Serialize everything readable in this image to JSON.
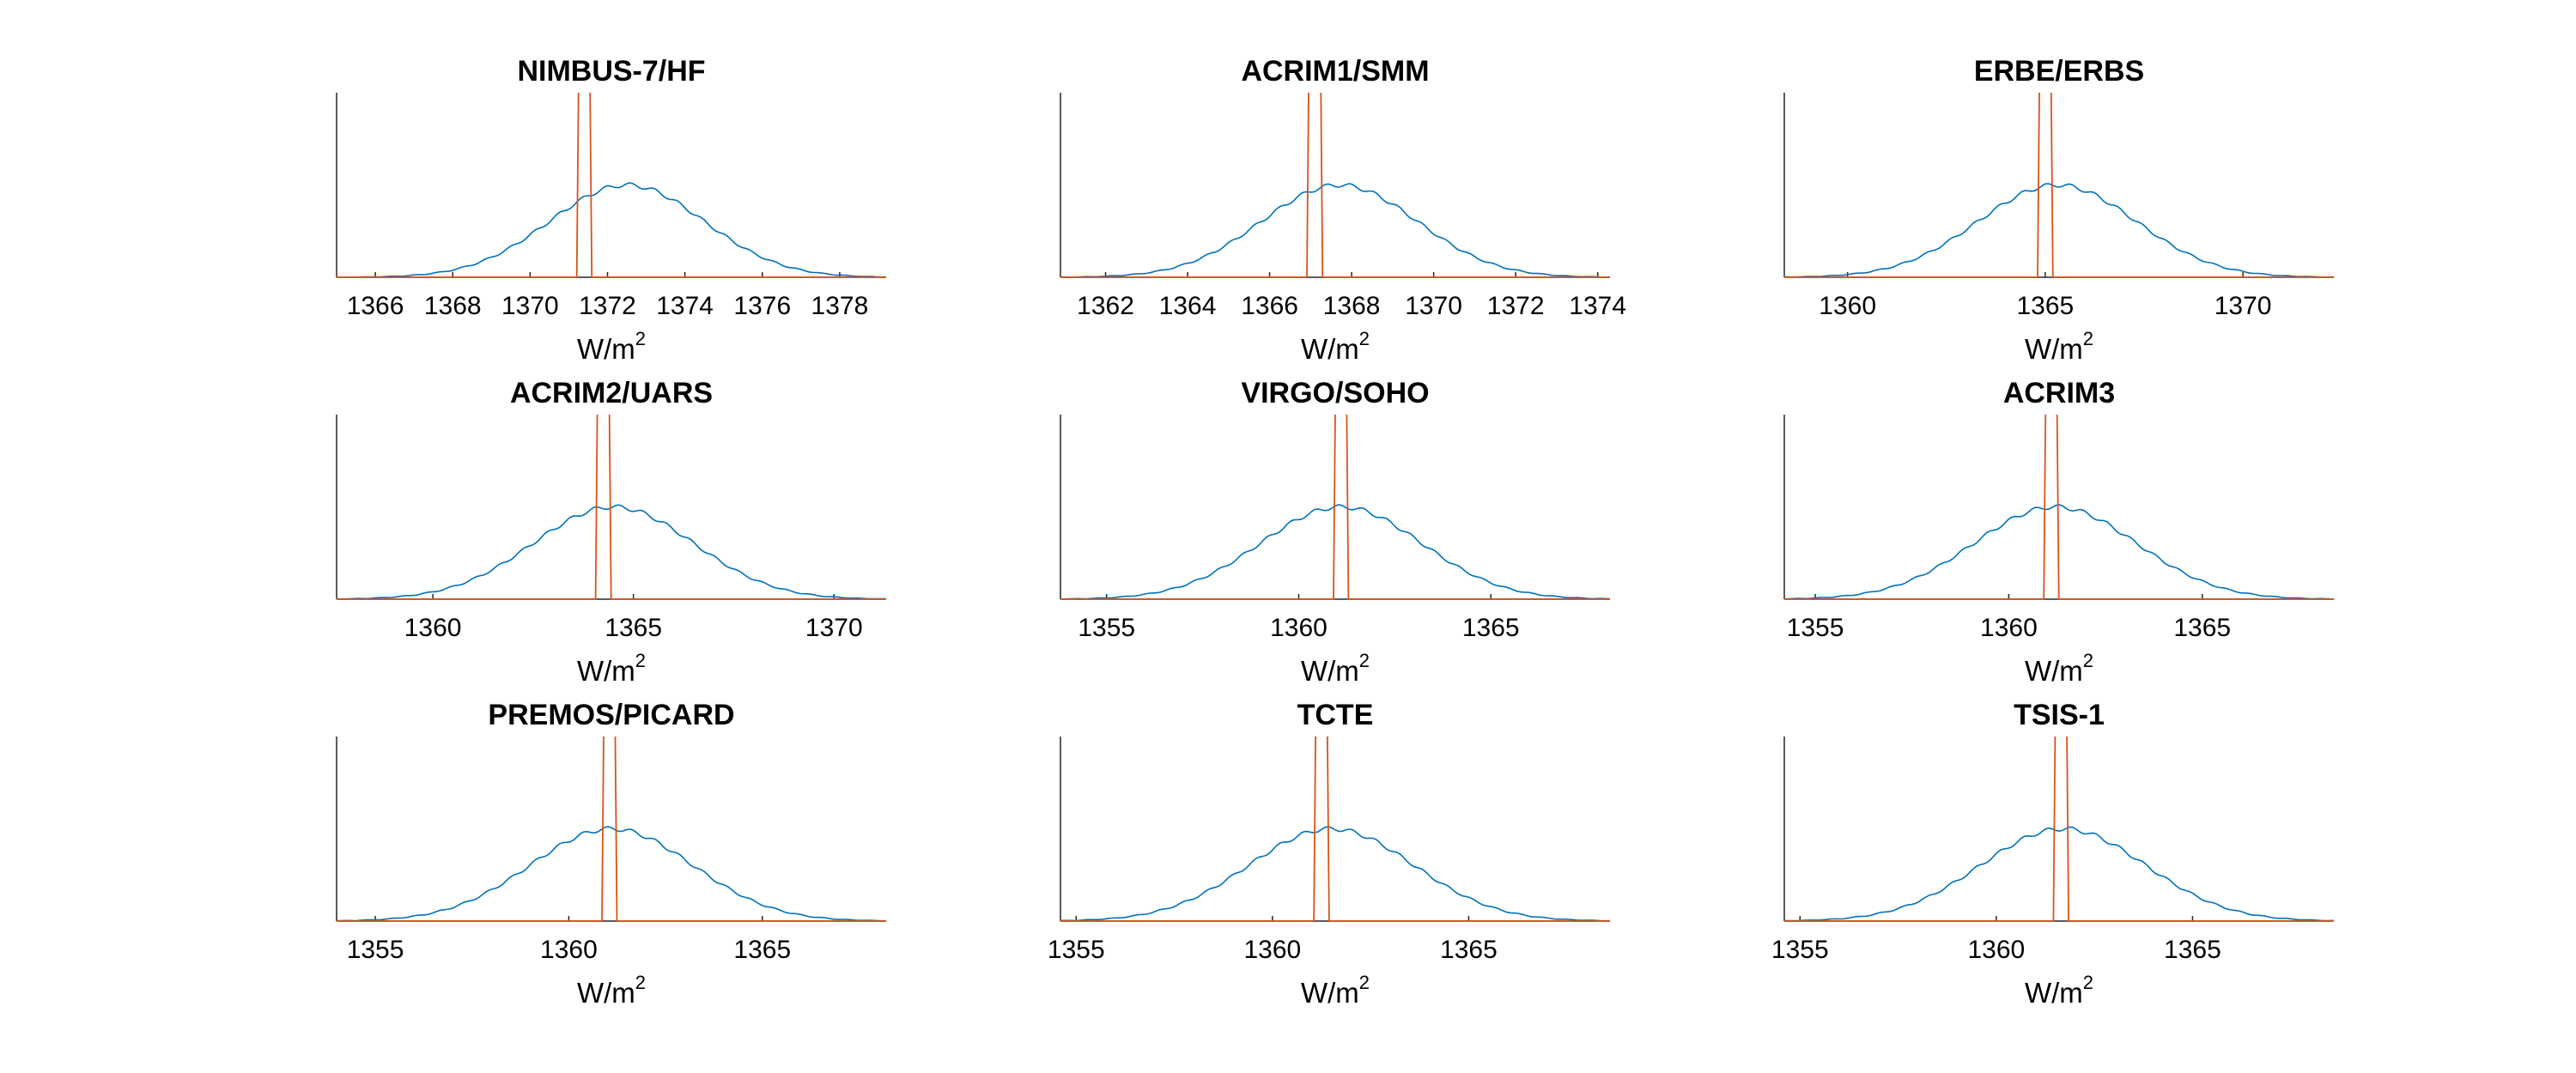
{
  "colors": {
    "prior": "#0072BD",
    "posterior": "#D95319",
    "axis": "#262626",
    "background": "#ffffff"
  },
  "chart_data": [
    {
      "type": "line",
      "title": "NIMBUS-7/HF",
      "xlabel_base": "W/m",
      "xlabel_sup": "2",
      "xlim": [
        1365.0,
        1379.2
      ],
      "ylim": [
        0,
        1.0
      ],
      "xticks": [
        1366,
        1368,
        1370,
        1372,
        1374,
        1376,
        1378
      ],
      "xtick_labels": [
        "1366",
        "1368",
        "1370",
        "1372",
        "1374",
        "1376",
        "1378"
      ],
      "prior_mean": 1372.5,
      "prior_sd": 2.0,
      "posterior_low": 1371.25,
      "posterior_high": 1371.55
    },
    {
      "type": "line",
      "title": "ACRIM1/SMM",
      "xlabel_base": "W/m",
      "xlabel_sup": "2",
      "xlim": [
        1360.9,
        1374.3
      ],
      "ylim": [
        0,
        1.0
      ],
      "xticks": [
        1362,
        1364,
        1366,
        1368,
        1370,
        1372,
        1374
      ],
      "xtick_labels": [
        "1362",
        "1364",
        "1366",
        "1368",
        "1370",
        "1372",
        "1374"
      ],
      "prior_mean": 1367.7,
      "prior_sd": 1.9,
      "posterior_low": 1366.95,
      "posterior_high": 1367.25
    },
    {
      "type": "line",
      "title": "ERBE/ERBS",
      "xlabel_base": "W/m",
      "xlabel_sup": "2",
      "xlim": [
        1358.4,
        1372.3
      ],
      "ylim": [
        0,
        1.0
      ],
      "xticks": [
        1360,
        1365,
        1370
      ],
      "xtick_labels": [
        "1360",
        "1365",
        "1370"
      ],
      "prior_mean": 1365.3,
      "prior_sd": 2.0,
      "posterior_low": 1364.85,
      "posterior_high": 1365.15
    },
    {
      "type": "line",
      "title": "ACRIM2/UARS",
      "xlabel_base": "W/m",
      "xlabel_sup": "2",
      "xlim": [
        1357.6,
        1371.3
      ],
      "ylim": [
        0,
        1.0
      ],
      "xticks": [
        1360,
        1365,
        1370
      ],
      "xtick_labels": [
        "1360",
        "1365",
        "1370"
      ],
      "prior_mean": 1364.5,
      "prior_sd": 2.0,
      "posterior_low": 1364.1,
      "posterior_high": 1364.4
    },
    {
      "type": "line",
      "title": "VIRGO/SOHO",
      "xlabel_base": "W/m",
      "xlabel_sup": "2",
      "xlim": [
        1353.8,
        1368.1
      ],
      "ylim": [
        0,
        1.0
      ],
      "xticks": [
        1355,
        1360,
        1365
      ],
      "xtick_labels": [
        "1355",
        "1360",
        "1365"
      ],
      "prior_mean": 1361.1,
      "prior_sd": 2.1,
      "posterior_low": 1360.95,
      "posterior_high": 1361.25
    },
    {
      "type": "line",
      "title": "ACRIM3",
      "xlabel_base": "W/m",
      "xlabel_sup": "2",
      "xlim": [
        1354.2,
        1368.4
      ],
      "ylim": [
        0,
        1.0
      ],
      "xticks": [
        1355,
        1360,
        1365
      ],
      "xtick_labels": [
        "1355",
        "1360",
        "1365"
      ],
      "prior_mean": 1361.2,
      "prior_sd": 2.1,
      "posterior_low": 1360.95,
      "posterior_high": 1361.25
    },
    {
      "type": "line",
      "title": "PREMOS/PICARD",
      "xlabel_base": "W/m",
      "xlabel_sup": "2",
      "xlim": [
        1354.0,
        1368.2
      ],
      "ylim": [
        0,
        1.0
      ],
      "xticks": [
        1355,
        1360,
        1365
      ],
      "xtick_labels": [
        "1355",
        "1360",
        "1365"
      ],
      "prior_mean": 1361.1,
      "prior_sd": 2.1,
      "posterior_low": 1360.9,
      "posterior_high": 1361.2
    },
    {
      "type": "line",
      "title": "TCTE",
      "xlabel_base": "W/m",
      "xlabel_sup": "2",
      "xlim": [
        1354.6,
        1368.6
      ],
      "ylim": [
        0,
        1.0
      ],
      "xticks": [
        1355,
        1360,
        1365
      ],
      "xtick_labels": [
        "1355",
        "1360",
        "1365"
      ],
      "prior_mean": 1361.5,
      "prior_sd": 2.1,
      "posterior_low": 1361.1,
      "posterior_high": 1361.4
    },
    {
      "type": "line",
      "title": "TSIS-1",
      "xlabel_base": "W/m",
      "xlabel_sup": "2",
      "xlim": [
        1354.6,
        1368.6
      ],
      "ylim": [
        0,
        1.0
      ],
      "xticks": [
        1355,
        1360,
        1365
      ],
      "xtick_labels": [
        "1355",
        "1360",
        "1365"
      ],
      "prior_mean": 1361.7,
      "prior_sd": 2.1,
      "posterior_low": 1361.5,
      "posterior_high": 1361.8
    }
  ]
}
